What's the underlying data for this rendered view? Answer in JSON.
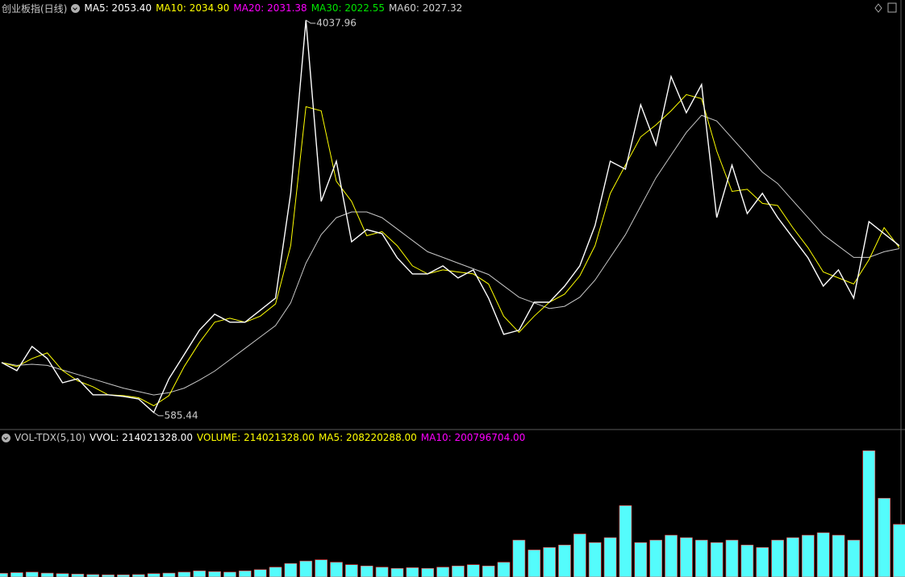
{
  "chart_data": [
    {
      "type": "line",
      "title": "创业板指(日线)",
      "indicators": [
        {
          "label": "MA5: 2053.40",
          "color": "#ffffff"
        },
        {
          "label": "MA10: 2034.90",
          "color": "#ffff00"
        },
        {
          "label": "MA20: 2031.38",
          "color": "#ff00ff"
        },
        {
          "label": "MA30: 2022.55",
          "color": "#00e600"
        },
        {
          "label": "MA60: 2027.32",
          "color": "#d0d0d0"
        }
      ],
      "categories": [
        null,
        null,
        null,
        null,
        null,
        null,
        null,
        null,
        null,
        null,
        null,
        null,
        null,
        null,
        null,
        null,
        null,
        null,
        null,
        null,
        null,
        null,
        null,
        null,
        null,
        null,
        null,
        null,
        null,
        null,
        null,
        null,
        null,
        null,
        null,
        null,
        null,
        null,
        null,
        null,
        null,
        null,
        null,
        null,
        null,
        null,
        null,
        null,
        null,
        null,
        null,
        null,
        null,
        null,
        null,
        null,
        null,
        null,
        null,
        null
      ],
      "series": [
        {
          "color": "#c8c8c8",
          "values": [
            1025,
            1000,
            1010,
            1000,
            960,
            920,
            880,
            840,
            800,
            770,
            740,
            760,
            800,
            870,
            950,
            1050,
            1150,
            1250,
            1350,
            1550,
            1900,
            2150,
            2300,
            2350,
            2350,
            2300,
            2200,
            2100,
            2000,
            1950,
            1900,
            1850,
            1800,
            1700,
            1600,
            1550,
            1500,
            1520,
            1600,
            1750,
            1950,
            2150,
            2400,
            2650,
            2850,
            3050,
            3200,
            3150,
            3000,
            2850,
            2700,
            2600,
            2450,
            2300,
            2150,
            2050,
            1950,
            1950,
            2000,
            2027.32
          ]
        },
        {
          "color": "#ffff00",
          "values": [
            1025,
            990,
            1060,
            1110,
            955,
            865,
            812,
            741,
            734,
            716,
            645,
            734,
            990,
            1200,
            1380,
            1415,
            1380,
            1433,
            1540,
            2053,
            3276,
            3240,
            2620,
            2443,
            2141,
            2177,
            2052,
            1876,
            1805,
            1840,
            1822,
            1805,
            1716,
            1432,
            1291,
            1433,
            1556,
            1627,
            1787,
            2053,
            2513,
            2762,
            3010,
            3116,
            3240,
            3382,
            3347,
            2886,
            2531,
            2549,
            2425,
            2407,
            2212,
            2035,
            1822,
            1769,
            1716,
            1929,
            2212,
            2034.9
          ]
        },
        {
          "color": "#ffffff",
          "values": [
            1025,
            954,
            1167,
            1060,
            847,
            883,
            741,
            741,
            727,
            705,
            585.44,
            883,
            1096,
            1309,
            1450,
            1380,
            1380,
            1486,
            1592,
            2514,
            4037.96,
            2443,
            2797,
            2088,
            2195,
            2159,
            1946,
            1805,
            1805,
            1876,
            1769,
            1840,
            1592,
            1273,
            1309,
            1556,
            1556,
            1698,
            1876,
            2230,
            2797,
            2726,
            3293,
            2939,
            3542,
            3223,
            3471,
            2301,
            2762,
            2336,
            2514,
            2301,
            2124,
            1946,
            1698,
            1840,
            1592,
            2265,
            2159,
            2053.4
          ]
        }
      ],
      "annotations": [
        4037.96,
        585.44
      ],
      "ylim": [
        457,
        4087
      ]
    },
    {
      "type": "bar",
      "title": "VOL-TDX(5,10)",
      "indicators": [
        {
          "label": "VVOL: 214021328.00",
          "color": "#ffffff"
        },
        {
          "label": "VOLUME: 214021328.00",
          "color": "#ffff00"
        },
        {
          "label": "MA5: 208220288.00",
          "color": "#ffff00"
        },
        {
          "label": "MA10: 200796704.00",
          "color": "#ff00ff"
        }
      ],
      "color": "#54fcfc",
      "values": [
        15000000,
        18000000,
        20000000,
        16000000,
        14000000,
        12000000,
        10000000,
        9000000,
        9000000,
        10000000,
        14000000,
        16000000,
        20000000,
        25000000,
        22000000,
        20000000,
        25000000,
        30000000,
        40000000,
        55000000,
        65000000,
        70000000,
        60000000,
        50000000,
        45000000,
        40000000,
        35000000,
        38000000,
        35000000,
        40000000,
        45000000,
        50000000,
        45000000,
        60000000,
        150000000,
        110000000,
        120000000,
        130000000,
        175000000,
        140000000,
        160000000,
        290000000,
        140000000,
        150000000,
        170000000,
        160000000,
        150000000,
        140000000,
        150000000,
        130000000,
        120000000,
        150000000,
        160000000,
        170000000,
        180000000,
        170000000,
        150000000,
        513000000,
        320000000,
        214021328
      ],
      "ylim": [
        0,
        540000000
      ]
    }
  ]
}
